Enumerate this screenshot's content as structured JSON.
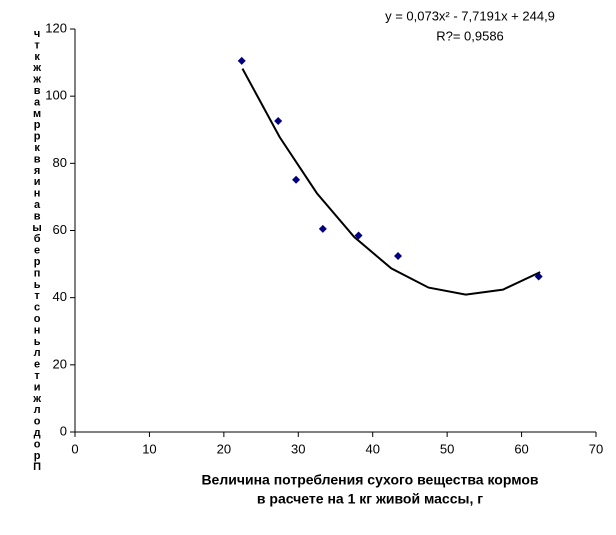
{
  "chart_data": {
    "type": "scatter",
    "x_label": "Величина потребления сухого вещества кормов",
    "x_label_line2": "в расчете на 1 кг живой массы, г",
    "y_label": "чткжжвамррквяинавыберпьтсоньлетижлодорП",
    "equation": "y = 0,073x² - 7,7191x + 244,9",
    "r_squared": "R?= 0,9586",
    "points": {
      "color": "#000080",
      "x": [
        22.4,
        27.3,
        29.7,
        33.3,
        38.1,
        43.4,
        62.3
      ],
      "values": [
        110.5,
        92.6,
        75.1,
        60.5,
        58.5,
        52.4,
        46.3
      ]
    },
    "trendline": {
      "color": "#000000",
      "x": [
        22.5,
        27.5,
        32.5,
        37.5,
        42.5,
        47.5,
        52.5,
        57.5,
        62.5
      ],
      "values": [
        108.2,
        87.8,
        71.1,
        58.1,
        48.7,
        43.0,
        40.9,
        42.4,
        47.6
      ]
    },
    "xlim": [
      0,
      70
    ],
    "xticks": [
      0,
      10,
      20,
      30,
      40,
      50,
      60,
      70
    ],
    "ylim": [
      0,
      120
    ],
    "yticks": [
      0,
      20,
      40,
      60,
      80,
      100,
      120
    ]
  }
}
